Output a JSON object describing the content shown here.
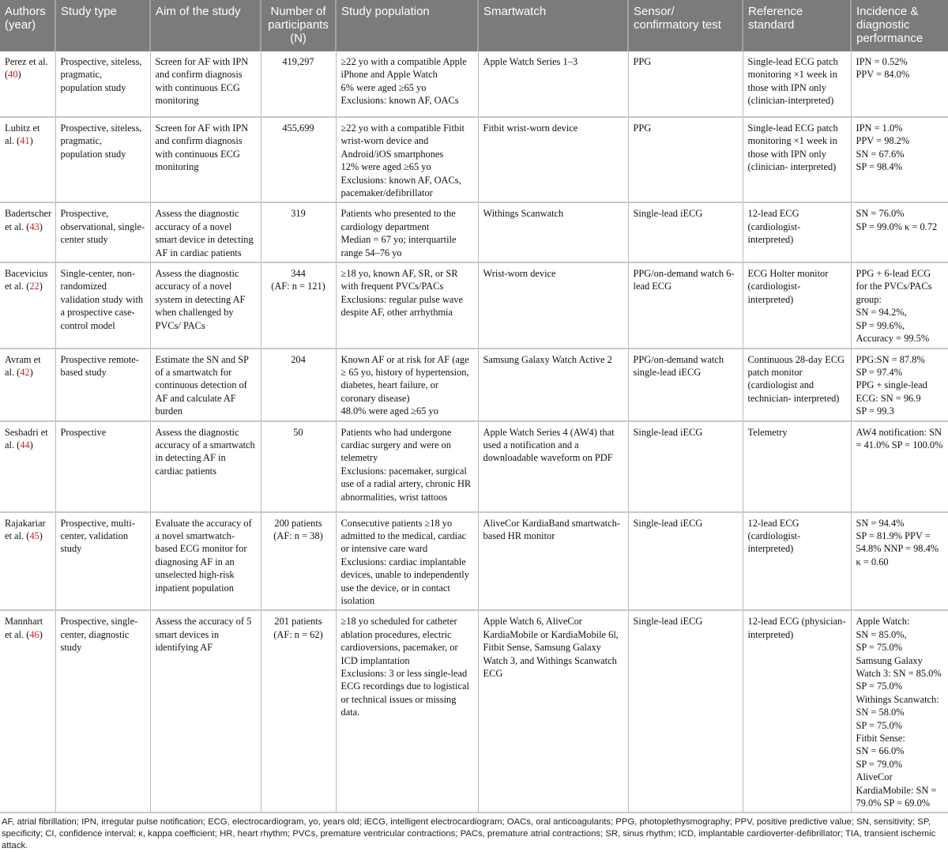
{
  "headers": [
    "Authors (year)",
    "Study type",
    "Aim of the study",
    "Number of participants (N)",
    "Study population",
    "Smartwatch",
    "Sensor/ confirmatory test",
    "Reference standard",
    "Incidence & diagnostic performance"
  ],
  "rows": [
    {
      "author": "Perez et al.",
      "ref": "40",
      "type": "Prospective, siteless, pragmatic, population study",
      "aim": "Screen for AF with IPN and confirm diagnosis with continuous ECG monitoring",
      "n": "419,297",
      "population": "≥22 yo with a compatible Apple iPhone and Apple Watch\n6% were aged ≥65 yo\nExclusions: known AF, OACs",
      "smartwatch": "Apple Watch Series 1–3",
      "sensor": "PPG",
      "reference": "Single-lead ECG patch monitoring ×1 week in those with IPN only (clinician-interpreted)",
      "performance": "IPN = 0.52%\nPPV = 84.0%"
    },
    {
      "author": "Lubitz et al.",
      "ref": "41",
      "type": "Prospective, siteless, pragmatic, population study",
      "aim": "Screen for AF with IPN and confirm diagnosis with continuous ECG monitoring",
      "n": "455,699",
      "population": "≥22 yo with a compatible Fitbit wrist-worn device and Android/iOS smartphones\n12% were aged ≥65 yo\nExclusions: known AF, OACs, pacemaker/defibrillator",
      "smartwatch": "Fitbit wrist-worn device",
      "sensor": "PPG",
      "reference": "Single-lead ECG patch monitoring ×1 week in those with IPN only (clinician- interpreted)",
      "performance": "IPN = 1.0%\nPPV = 98.2%\nSN = 67.6%\nSP = 98.4%"
    },
    {
      "author": "Badertscher et al.",
      "ref": "43",
      "type": "Prospective, observational, single-center study",
      "aim": "Assess the diagnostic accuracy of a novel smart device in detecting AF in cardiac patients",
      "n": "319",
      "population": "Patients who presented to the cardiology department\nMedian = 67 yo; interquartile range 54–76 yo",
      "smartwatch": "Withings Scanwatch",
      "sensor": "Single-lead iECG",
      "reference": "12-lead ECG (cardiologist-interpreted)",
      "performance": "SN = 76.0%\nSP = 99.0% κ = 0.72"
    },
    {
      "author": "Bacevicius et al.",
      "ref": "22",
      "type": "Single-center, non-randomized validation study with a prospective case-control model",
      "aim": "Assess the diagnostic accuracy of a novel system in detecting AF when challenged by PVCs/ PACs",
      "n": "344\n(AF: n = 121)",
      "population": "≥18 yo, known AF, SR, or SR with frequent PVCs/PACs\nExclusions: regular pulse wave despite AF, other arrhythmia",
      "smartwatch": "Wrist-worn device",
      "sensor": "PPG/on-demand watch 6-lead ECG",
      "reference": "ECG Holter monitor (cardiologist- interpreted)",
      "performance": "PPG + 6-lead ECG for the PVCs/PACs group:\nSN = 94.2%,\nSP = 99.6%, Accuracy = 99.5%"
    },
    {
      "author": "Avram et al.",
      "ref": "42",
      "type": "Prospective remote-based study",
      "aim": "Estimate the SN and SP of a smartwatch for continuous detection of AF and calculate AF burden",
      "n": "204",
      "population": "Known AF or at risk for AF (age ≥ 65 yo, history of hypertension, diabetes, heart failure, or coronary disease)\n48.0% were aged ≥65 yo",
      "smartwatch": "Samsung Galaxy Watch Active 2",
      "sensor": "PPG/on-demand watch single-lead iECG",
      "reference": "Continuous 28-day ECG patch monitor (cardiologist and technician- interpreted)",
      "performance": "PPG:SN = 87.8%\nSP = 97.4%\nPPG + single-lead ECG: SN = 96.9\nSP = 99.3"
    },
    {
      "author": "Seshadri et al.",
      "ref": "44",
      "type": "Prospective",
      "aim": "Assess the diagnostic accuracy of a smartwatch in detecting AF in cardiac patients",
      "n": "50",
      "population": "Patients who had undergone cardiac surgery and were on telemetry\nExclusions: pacemaker, surgical use of a radial artery, chronic HR abnormalities, wrist tattoos",
      "smartwatch": "Apple Watch Series 4 (AW4) that used a notification and a downloadable waveform on PDF",
      "sensor": "Single-lead iECG",
      "reference": "Telemetry",
      "performance": "AW4 notification: SN = 41.0% SP = 100.0%"
    },
    {
      "author": "Rajakariar et al.",
      "ref": "45",
      "type": "Prospective, multi-center, validation study",
      "aim": "Evaluate the accuracy of a novel smartwatch-based ECG monitor for diagnosing AF in an unselected high-risk inpatient population",
      "n": "200 patients\n(AF: n = 38)",
      "population": "Consecutive patients ≥18 yo admitted to the medical, cardiac or intensive care ward\nExclusions: cardiac implantable devices, unable to independently use the device, or in contact isolation",
      "smartwatch": "AliveCor KardiaBand smartwatch-based HR monitor",
      "sensor": "Single-lead iECG",
      "reference": "12-lead ECG (cardiologist- interpreted)",
      "performance": "SN = 94.4%\nSP = 81.9% PPV = 54.8% NNP = 98.4%\nκ = 0.60"
    },
    {
      "author": "Mannhart et al.",
      "ref": "46",
      "type": "Prospective, single-center, diagnostic study",
      "aim": "Assess the accuracy of 5 smart devices in identifying AF",
      "n": "201 patients\n(AF: n = 62)",
      "population": "≥18 yo scheduled for catheter ablation procedures, electric cardioversions, pacemaker, or ICD implantation\nExclusions: 3 or less single-lead ECG recordings due to logistical or technical issues or missing data.",
      "smartwatch": "Apple Watch 6, AliveCor KardiaMobile or KardiaMobile 6l, Fitbit Sense, Samsung Galaxy Watch 3, and Withings Scanwatch ECG",
      "sensor": "Single-lead iECG",
      "reference": "12-lead ECG (physician-interpreted)",
      "performance": "Apple Watch:\nSN = 85.0%,\nSP = 75.0%\nSamsung Galaxy Watch 3: SN = 85.0%\nSP = 75.0%\nWithings Scanwatch:\nSN = 58.0%\nSP = 75.0%\nFitbit Sense:\nSN = 66.0%\nSP = 79.0%\nAliveCor KardiaMobile: SN = 79.0% SP = 69.0%"
    }
  ],
  "footnote": "AF, atrial fibrillation; IPN, irregular pulse notification; ECG, electrocardiogram, yo, years old; iECG, intelligent electrocardiogram; OACs, oral anticoagulants; PPG, photoplethysmography; PPV, positive predictive value; SN, sensitivity; SP, specificity; CI, confidence interval; κ, kappa coefficient; HR, heart rhythm; PVCs, premature ventricular contractions; PACs, premature atrial contractions; SR, sinus rhythm; ICD, implantable cardioverter-defibrillator; TIA, transient ischemic attack.",
  "colors": {
    "header_bg": "#7b7b7b",
    "ref_link": "#d0202a"
  }
}
